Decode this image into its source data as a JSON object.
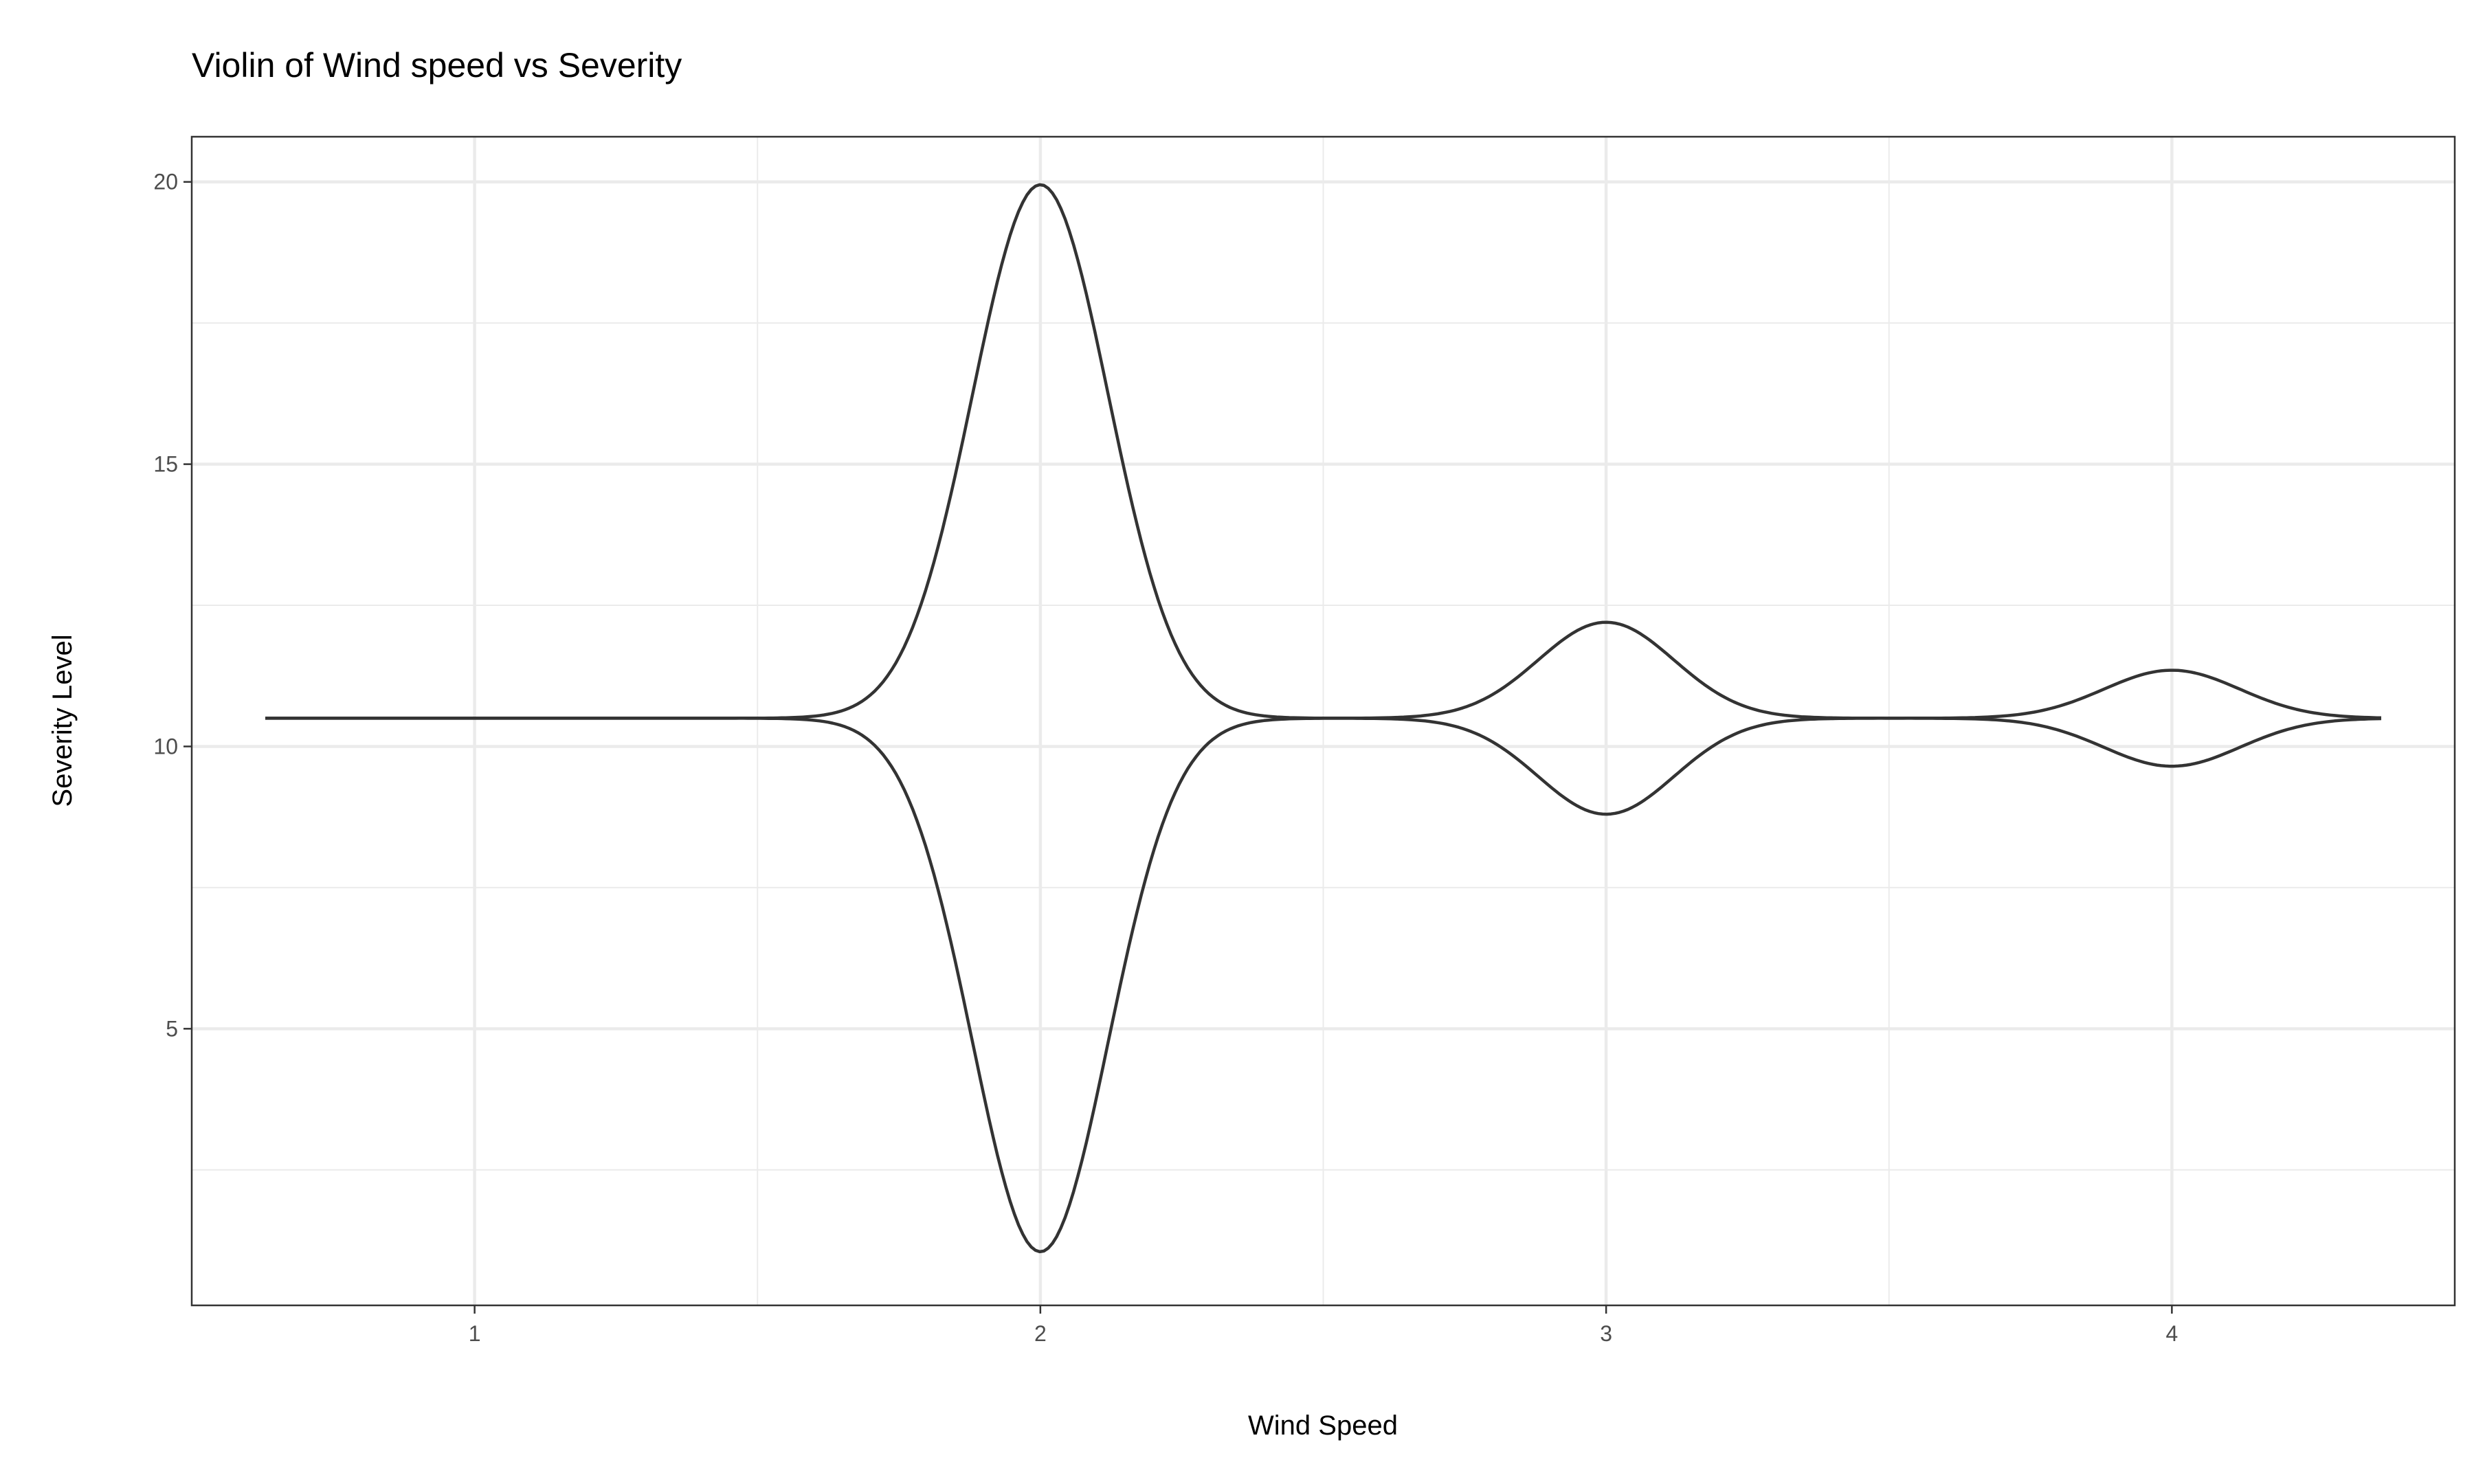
{
  "chart_data": {
    "type": "violin",
    "title": "Violin of Wind speed vs Severity",
    "xlabel": "Wind Speed",
    "ylabel": "Severity Level",
    "x_ticks": [
      1,
      2,
      3,
      4
    ],
    "x_tick_labels": [
      "1",
      "2",
      "3",
      "4"
    ],
    "y_ticks": [
      5,
      10,
      15,
      20
    ],
    "y_tick_labels": [
      "5",
      "10",
      "15",
      "20"
    ],
    "xlim": [
      0.5,
      4.5
    ],
    "ylim": [
      0.1,
      20.8
    ],
    "grid": true,
    "legend": "none",
    "outline_color": "#333333",
    "background_color": "#ffffff",
    "grid_color": "#ebebeb",
    "violin": {
      "orientation": "horizontal",
      "center_y": 10.5,
      "x_range": [
        0.63,
        4.37
      ],
      "peaks": [
        {
          "x": 2,
          "upper": 19.95,
          "lower": 1.05
        },
        {
          "x": 3,
          "upper": 12.2,
          "lower": 8.8
        },
        {
          "x": 4,
          "upper": 11.35,
          "lower": 9.65
        }
      ]
    }
  }
}
